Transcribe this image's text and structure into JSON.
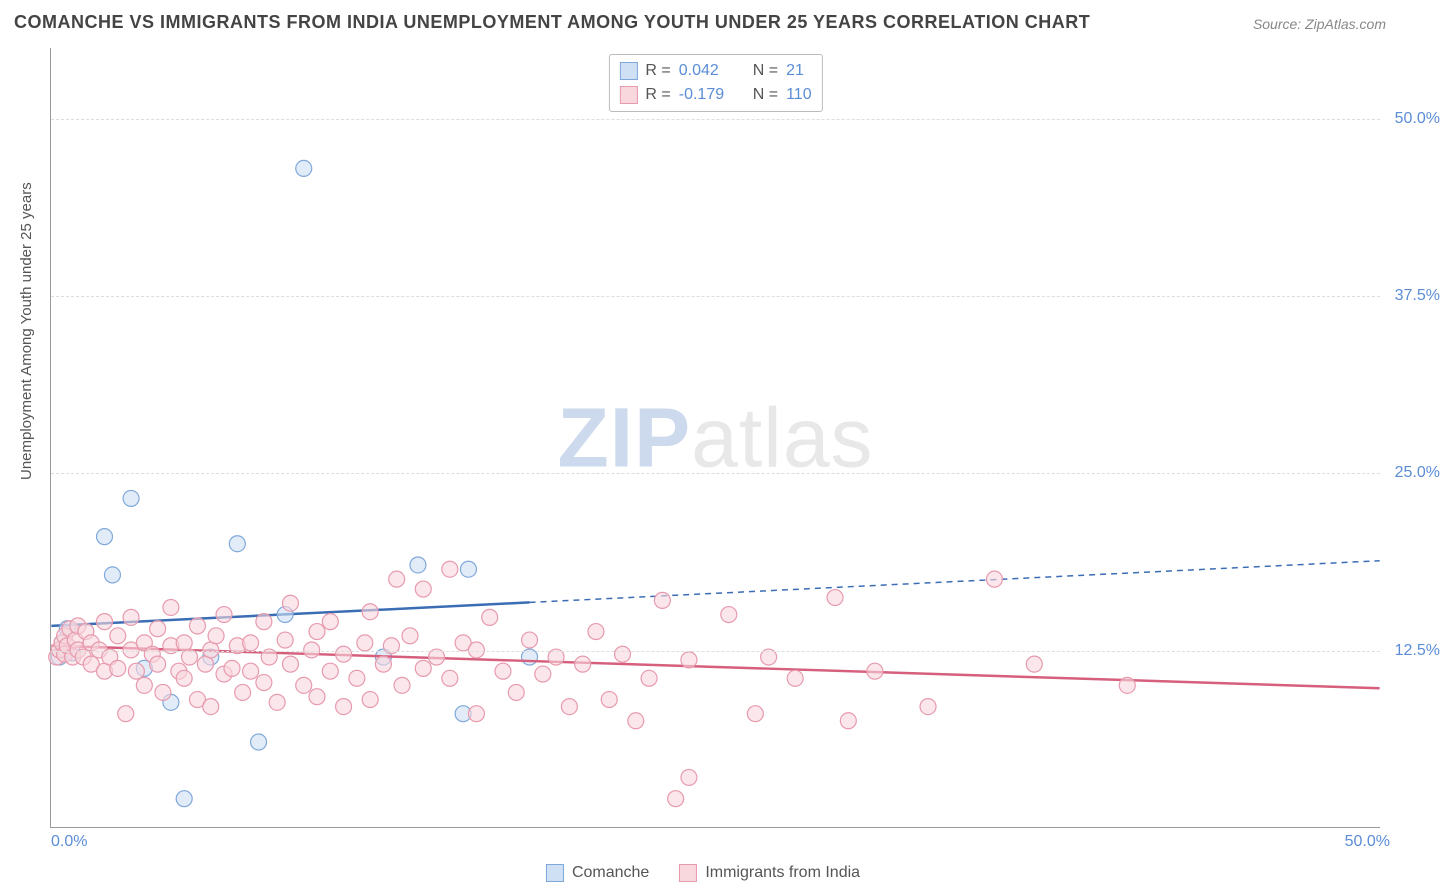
{
  "title": "COMANCHE VS IMMIGRANTS FROM INDIA UNEMPLOYMENT AMONG YOUTH UNDER 25 YEARS CORRELATION CHART",
  "source": "Source: ZipAtlas.com",
  "ylabel": "Unemployment Among Youth under 25 years",
  "watermark_a": "ZIP",
  "watermark_b": "atlas",
  "chart": {
    "type": "scatter",
    "xlim": [
      0,
      50
    ],
    "ylim": [
      0,
      55
    ],
    "ytick_values": [
      12.5,
      25.0,
      37.5,
      50.0
    ],
    "ytick_labels": [
      "12.5%",
      "25.0%",
      "37.5%",
      "50.0%"
    ],
    "x_zero_label": "0.0%",
    "x_max_label": "50.0%",
    "grid_color": "#dddddd",
    "background_color": "#ffffff",
    "marker_radius": 8,
    "marker_stroke_width": 1.2,
    "line_width": 2.5,
    "series": [
      {
        "name": "Comanche",
        "color_fill": "#cfe0f5",
        "color_stroke": "#7fa8da",
        "line_color": "#3b6db5",
        "r_value": "0.042",
        "n_value": "21",
        "trend": {
          "y_at_x0": 14.2,
          "y_at_x50": 18.8,
          "solid_until_x": 18
        },
        "points": [
          [
            0.3,
            12.0
          ],
          [
            0.4,
            13.0
          ],
          [
            0.5,
            12.5
          ],
          [
            0.6,
            14.0
          ],
          [
            0.8,
            12.3
          ],
          [
            2.0,
            20.5
          ],
          [
            2.3,
            17.8
          ],
          [
            3.0,
            23.2
          ],
          [
            3.5,
            11.2
          ],
          [
            4.5,
            8.8
          ],
          [
            5.0,
            2.0
          ],
          [
            6.0,
            12.0
          ],
          [
            7.0,
            20.0
          ],
          [
            7.8,
            6.0
          ],
          [
            8.8,
            15.0
          ],
          [
            9.5,
            46.5
          ],
          [
            12.5,
            12.0
          ],
          [
            13.8,
            18.5
          ],
          [
            15.5,
            8.0
          ],
          [
            15.7,
            18.2
          ],
          [
            18.0,
            12.0
          ]
        ]
      },
      {
        "name": "Immigrants from India",
        "color_fill": "#f8d7dd",
        "color_stroke": "#e79aad",
        "line_color": "#d65f7d",
        "r_value": "-0.179",
        "n_value": "110",
        "trend": {
          "y_at_x0": 12.8,
          "y_at_x50": 9.8,
          "solid_until_x": 50
        },
        "points": [
          [
            0.2,
            12.0
          ],
          [
            0.3,
            12.5
          ],
          [
            0.4,
            13.0
          ],
          [
            0.5,
            12.2
          ],
          [
            0.5,
            13.5
          ],
          [
            0.6,
            12.8
          ],
          [
            0.7,
            14.0
          ],
          [
            0.8,
            12.0
          ],
          [
            0.9,
            13.2
          ],
          [
            1.0,
            12.5
          ],
          [
            1.0,
            14.2
          ],
          [
            1.2,
            12.0
          ],
          [
            1.3,
            13.8
          ],
          [
            1.5,
            11.5
          ],
          [
            1.5,
            13.0
          ],
          [
            1.8,
            12.5
          ],
          [
            2.0,
            11.0
          ],
          [
            2.0,
            14.5
          ],
          [
            2.2,
            12.0
          ],
          [
            2.5,
            13.5
          ],
          [
            2.5,
            11.2
          ],
          [
            2.8,
            8.0
          ],
          [
            3.0,
            12.5
          ],
          [
            3.0,
            14.8
          ],
          [
            3.2,
            11.0
          ],
          [
            3.5,
            13.0
          ],
          [
            3.5,
            10.0
          ],
          [
            3.8,
            12.2
          ],
          [
            4.0,
            11.5
          ],
          [
            4.0,
            14.0
          ],
          [
            4.2,
            9.5
          ],
          [
            4.5,
            12.8
          ],
          [
            4.5,
            15.5
          ],
          [
            4.8,
            11.0
          ],
          [
            5.0,
            13.0
          ],
          [
            5.0,
            10.5
          ],
          [
            5.2,
            12.0
          ],
          [
            5.5,
            14.2
          ],
          [
            5.5,
            9.0
          ],
          [
            5.8,
            11.5
          ],
          [
            6.0,
            12.5
          ],
          [
            6.0,
            8.5
          ],
          [
            6.2,
            13.5
          ],
          [
            6.5,
            10.8
          ],
          [
            6.5,
            15.0
          ],
          [
            6.8,
            11.2
          ],
          [
            7.0,
            12.8
          ],
          [
            7.2,
            9.5
          ],
          [
            7.5,
            13.0
          ],
          [
            7.5,
            11.0
          ],
          [
            8.0,
            14.5
          ],
          [
            8.0,
            10.2
          ],
          [
            8.2,
            12.0
          ],
          [
            8.5,
            8.8
          ],
          [
            8.8,
            13.2
          ],
          [
            9.0,
            11.5
          ],
          [
            9.0,
            15.8
          ],
          [
            9.5,
            10.0
          ],
          [
            9.8,
            12.5
          ],
          [
            10.0,
            9.2
          ],
          [
            10.0,
            13.8
          ],
          [
            10.5,
            11.0
          ],
          [
            10.5,
            14.5
          ],
          [
            11.0,
            12.2
          ],
          [
            11.0,
            8.5
          ],
          [
            11.5,
            10.5
          ],
          [
            11.8,
            13.0
          ],
          [
            12.0,
            9.0
          ],
          [
            12.0,
            15.2
          ],
          [
            12.5,
            11.5
          ],
          [
            12.8,
            12.8
          ],
          [
            13.0,
            17.5
          ],
          [
            13.2,
            10.0
          ],
          [
            13.5,
            13.5
          ],
          [
            14.0,
            16.8
          ],
          [
            14.0,
            11.2
          ],
          [
            14.5,
            12.0
          ],
          [
            15.0,
            18.2
          ],
          [
            15.0,
            10.5
          ],
          [
            15.5,
            13.0
          ],
          [
            16.0,
            8.0
          ],
          [
            16.0,
            12.5
          ],
          [
            16.5,
            14.8
          ],
          [
            17.0,
            11.0
          ],
          [
            17.5,
            9.5
          ],
          [
            18.0,
            13.2
          ],
          [
            18.5,
            10.8
          ],
          [
            19.0,
            12.0
          ],
          [
            19.5,
            8.5
          ],
          [
            20.0,
            11.5
          ],
          [
            20.5,
            13.8
          ],
          [
            21.0,
            9.0
          ],
          [
            21.5,
            12.2
          ],
          [
            22.0,
            7.5
          ],
          [
            22.5,
            10.5
          ],
          [
            23.0,
            16.0
          ],
          [
            23.5,
            2.0
          ],
          [
            24.0,
            3.5
          ],
          [
            24.0,
            11.8
          ],
          [
            25.5,
            15.0
          ],
          [
            26.5,
            8.0
          ],
          [
            27.0,
            12.0
          ],
          [
            28.0,
            10.5
          ],
          [
            29.5,
            16.2
          ],
          [
            30.0,
            7.5
          ],
          [
            31.0,
            11.0
          ],
          [
            33.0,
            8.5
          ],
          [
            35.5,
            17.5
          ],
          [
            37.0,
            11.5
          ],
          [
            40.5,
            10.0
          ]
        ]
      }
    ]
  },
  "legend_bottom": [
    {
      "label": "Comanche",
      "fill": "#cfe0f5",
      "stroke": "#7fa8da"
    },
    {
      "label": "Immigrants from India",
      "fill": "#f8d7dd",
      "stroke": "#e79aad"
    }
  ]
}
